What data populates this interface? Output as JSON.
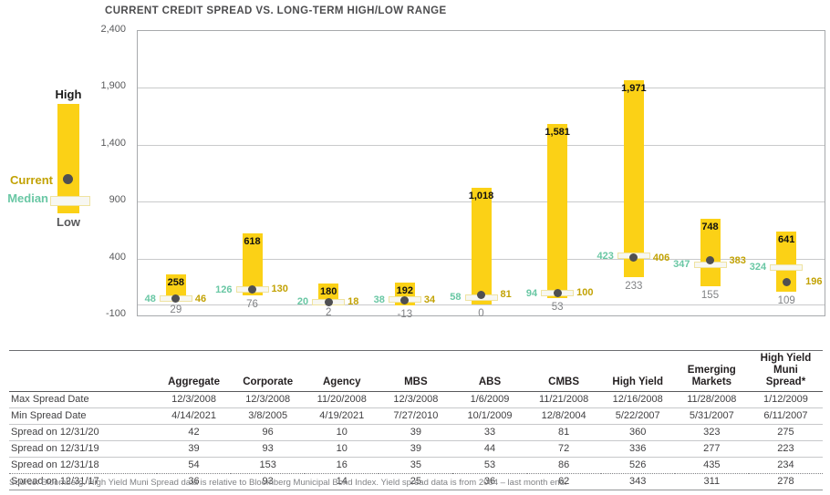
{
  "title": "CURRENT CREDIT SPREAD VS. LONG-TERM HIGH/LOW RANGE",
  "legend": {
    "high": "High",
    "current": "Current",
    "median": "Median",
    "low": "Low"
  },
  "colors": {
    "range_bar": "#fbd116",
    "current_dot": "#4f4f51",
    "current_label": "#c2a204",
    "median_label": "#69c7a4",
    "low_label": "#808285",
    "high_label": "#111111",
    "gridline": "#c9cacb"
  },
  "chart_data": {
    "type": "bar",
    "subtype": "high-low-range-with-current-and-median-markers",
    "title": "CURRENT CREDIT SPREAD VS. LONG-TERM HIGH/LOW RANGE",
    "categories": [
      "Aggregate",
      "Corporate",
      "Agency",
      "MBS",
      "ABS",
      "CMBS",
      "High Yield",
      "Emerging Markets",
      "High Yield Muni Spread*"
    ],
    "series": [
      {
        "name": "High",
        "values": [
          258,
          618,
          180,
          192,
          1018,
          1581,
          1971,
          748,
          641
        ],
        "labels": [
          "258",
          "618",
          "180",
          "192",
          "1,018",
          "1,581",
          "1,971",
          "748",
          "641"
        ]
      },
      {
        "name": "Low",
        "values": [
          29,
          76,
          2,
          -13,
          0,
          53,
          233,
          155,
          109
        ],
        "labels": [
          "29",
          "76",
          "2",
          "-13",
          "0",
          "53",
          "233",
          "155",
          "109"
        ]
      },
      {
        "name": "Median",
        "values": [
          48,
          126,
          20,
          38,
          58,
          94,
          423,
          347,
          324
        ],
        "labels": [
          "48",
          "126",
          "20",
          "38",
          "58",
          "94",
          "423",
          "347",
          "324"
        ]
      },
      {
        "name": "Current",
        "values": [
          46,
          130,
          18,
          34,
          81,
          100,
          406,
          383,
          196
        ],
        "labels": [
          "46",
          "130",
          "18",
          "34",
          "81",
          "100",
          "406",
          "383",
          "196"
        ]
      }
    ],
    "ylim": [
      -100,
      2400
    ],
    "ytick_values": [
      2400,
      1900,
      1400,
      900,
      400,
      -100
    ],
    "ytick_labels": [
      "2,400",
      "1,900",
      "1,400",
      "900",
      "400",
      "-100"
    ],
    "grid": true,
    "zero_baseline": true,
    "legend_position": "left"
  },
  "table": {
    "columns": [
      "",
      "Aggregate",
      "Corporate",
      "Agency",
      "MBS",
      "ABS",
      "CMBS",
      "High Yield",
      "Emerging\nMarkets",
      "High Yield Muni\nSpread*"
    ],
    "rows": [
      {
        "label": "Max Spread Date",
        "values": [
          "12/3/2008",
          "12/3/2008",
          "11/20/2008",
          "12/3/2008",
          "1/6/2009",
          "11/21/2008",
          "12/16/2008",
          "11/28/2008",
          "1/12/2009"
        ]
      },
      {
        "label": "Min Spread Date",
        "values": [
          "4/14/2021",
          "3/8/2005",
          "4/19/2021",
          "7/27/2010",
          "10/1/2009",
          "12/8/2004",
          "5/22/2007",
          "5/31/2007",
          "6/11/2007"
        ]
      },
      {
        "label": "Spread on 12/31/20",
        "values": [
          "42",
          "96",
          "10",
          "39",
          "33",
          "81",
          "360",
          "323",
          "275"
        ]
      },
      {
        "label": "Spread on 12/31/19",
        "values": [
          "39",
          "93",
          "10",
          "39",
          "44",
          "72",
          "336",
          "277",
          "223"
        ]
      },
      {
        "label": "Spread on 12/31/18",
        "values": [
          "54",
          "153",
          "16",
          "35",
          "53",
          "86",
          "526",
          "435",
          "234"
        ]
      },
      {
        "label": "Spread on 12/31/17",
        "values": [
          "36",
          "93",
          "14",
          "25",
          "36",
          "62",
          "343",
          "311",
          "278"
        ]
      }
    ]
  },
  "footnote": "Source: Bloomberg. High Yield Muni Spread data is relative to Bloomberg Municipal Bond Index. Yield spread data is from 2004 – last month end."
}
